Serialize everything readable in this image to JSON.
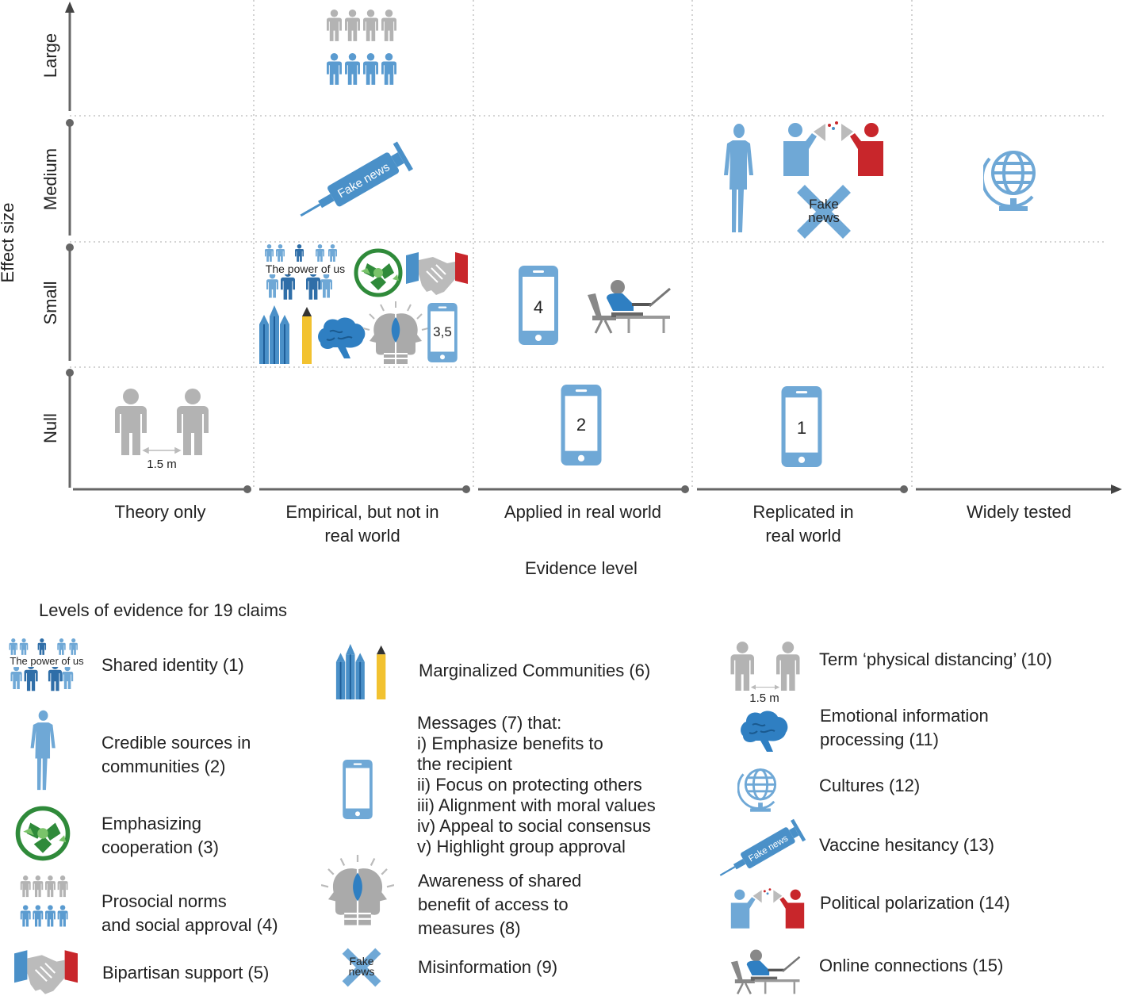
{
  "axes": {
    "y_title": "Effect size",
    "x_title": "Evidence level",
    "y_levels": [
      "Large",
      "Medium",
      "Small",
      "Null"
    ],
    "x_levels": [
      "Theory only",
      "Empirical, but not in\nreal world",
      "Applied in real world",
      "Replicated in\nreal world",
      "Widely tested"
    ]
  },
  "grid_icons": {
    "power_of_us": "The power of us",
    "fake_news_syringe": "Fake news",
    "fake_news_cross": "Fake\nnews",
    "distance": "1.5 m",
    "phone_small": "4",
    "phone_small2": "3,5",
    "phone_null_applied": "2",
    "phone_null_replicated": "1"
  },
  "legend": {
    "title": "Levels of evidence for 19 claims",
    "items": [
      {
        "icon": "shared-identity-icon",
        "label": "Shared identity (1)"
      },
      {
        "icon": "credible-sources-icon",
        "label": "Credible sources in\ncommunities (2)"
      },
      {
        "icon": "cooperation-icon",
        "label": "Emphasizing\ncooperation (3)"
      },
      {
        "icon": "prosocial-norms-icon",
        "label": "Prosocial norms\nand social approval (4)"
      },
      {
        "icon": "handshake-icon",
        "label": "Bipartisan support (5)"
      },
      {
        "icon": "pencils-icon",
        "label": "Marginalized Communities (6)"
      },
      {
        "icon": "phone-icon",
        "label": "Messages (7) that:\ni) Emphasize benefits to\nthe recipient\nii) Focus on protecting others\niii) Alignment with moral values\niv) Appeal to social consensus\nv) Highlight group approval"
      },
      {
        "icon": "shared-benefit-icon",
        "label": "Awareness of shared\nbenefit of access to\nmeasures (8)"
      },
      {
        "icon": "misinformation-icon",
        "label": "Misinformation (9)"
      },
      {
        "icon": "physical-distancing-icon",
        "label": "Term ‘physical distancing’ (10)"
      },
      {
        "icon": "brain-icon",
        "label": "Emotional information\nprocessing (11)"
      },
      {
        "icon": "globe-icon",
        "label": "Cultures (12)"
      },
      {
        "icon": "syringe-icon",
        "label": "Vaccine hesitancy (13)"
      },
      {
        "icon": "polarization-icon",
        "label": "Political polarization (14)"
      },
      {
        "icon": "online-connections-icon",
        "label": "Online connections (15)"
      }
    ]
  },
  "colors": {
    "blue": "#4a90c8",
    "light_blue": "#6fa8d6",
    "grey": "#b3b3b3",
    "green": "#2f8a3a",
    "red": "#c8262b",
    "yellow": "#f2c230",
    "axis": "#555555"
  }
}
